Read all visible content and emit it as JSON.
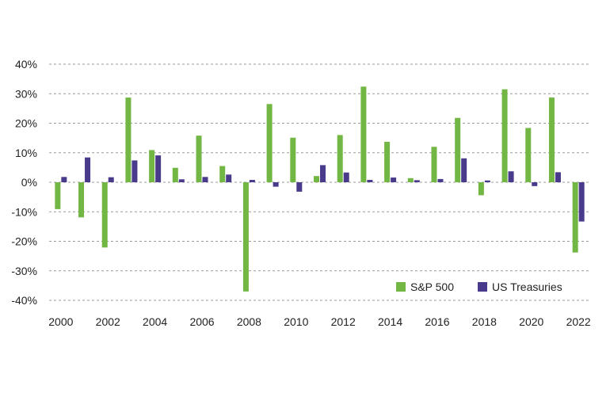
{
  "chart_data": {
    "type": "bar",
    "title": "",
    "xlabel": "",
    "ylabel": "",
    "categories": [
      "2000",
      "2001",
      "2002",
      "2003",
      "2004",
      "2005",
      "2006",
      "2007",
      "2008",
      "2009",
      "2010",
      "2011",
      "2012",
      "2013",
      "2014",
      "2015",
      "2016",
      "2017",
      "2018",
      "2019",
      "2020",
      "2021",
      "2022"
    ],
    "x_tick_labels": [
      "2000",
      "2002",
      "2004",
      "2006",
      "2008",
      "2010",
      "2012",
      "2014",
      "2016",
      "2018",
      "2020",
      "2022"
    ],
    "y_tick_labels": [
      "40%",
      "30%",
      "20%",
      "10%",
      "0%",
      "-10%",
      "-20%",
      "-30%",
      "-40%"
    ],
    "y_ticks": [
      40,
      30,
      20,
      10,
      0,
      -10,
      -20,
      -30,
      -40
    ],
    "ylim": [
      -40,
      40
    ],
    "grid": "horizontal dashed",
    "legend_position": "bottom-right",
    "series": [
      {
        "name": "S&P 500",
        "color": "#72b743",
        "values": [
          -9.1,
          -11.9,
          -22.1,
          28.7,
          10.9,
          4.9,
          15.8,
          5.5,
          -37.0,
          26.5,
          15.1,
          2.1,
          16.0,
          32.4,
          13.7,
          1.4,
          12.0,
          21.8,
          -4.4,
          31.5,
          18.4,
          28.7,
          -23.8
        ]
      },
      {
        "name": "US Treasuries",
        "color": "#4a3a8c",
        "values": [
          1.8,
          8.4,
          1.7,
          7.4,
          9.1,
          1.0,
          1.8,
          2.6,
          0.8,
          -1.5,
          -3.2,
          5.8,
          3.3,
          0.8,
          1.6,
          0.7,
          1.1,
          8.1,
          0.6,
          3.7,
          -1.3,
          3.4,
          -13.3
        ]
      }
    ]
  }
}
